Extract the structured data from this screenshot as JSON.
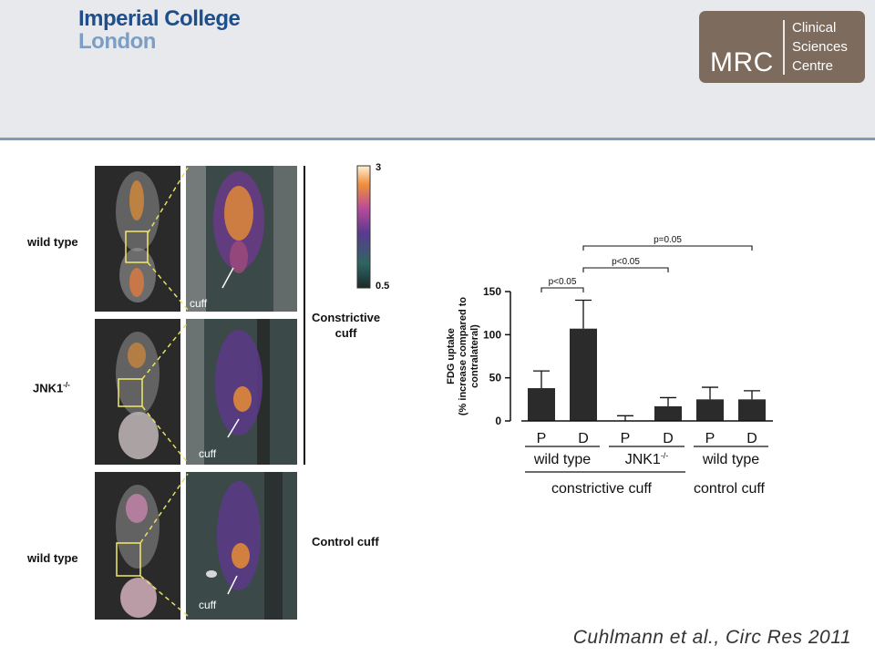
{
  "header": {
    "logo_line1": "Imperial College",
    "logo_line2": "London",
    "mrc_big": "MRC",
    "mrc_small": [
      "Clinical",
      "Sciences",
      "Centre"
    ]
  },
  "figure": {
    "row_labels": [
      "wild type",
      "JNK1",
      "wild type"
    ],
    "jnk_superscript": "-/-",
    "cuff_label": "cuff",
    "colorbar_max": "3",
    "colorbar_min": "0.5",
    "constrictive_label_1": "Constrictive",
    "constrictive_label_2": "cuff",
    "control_label": "Control cuff"
  },
  "chart_data": {
    "type": "bar",
    "ylabel_line1": "FDG uptake",
    "ylabel_line2": "(% increase compared to",
    "ylabel_line3": "contralateral)",
    "ylim": [
      0,
      150
    ],
    "yticks": [
      "0",
      "50",
      "100",
      "150"
    ],
    "categories": [
      "P",
      "D",
      "P",
      "D",
      "P",
      "D"
    ],
    "values": [
      38,
      107,
      0,
      17,
      25,
      25
    ],
    "errors": [
      20,
      33,
      6,
      10,
      14,
      10
    ],
    "group_labels": [
      "wild type",
      "JNK1",
      "wild type"
    ],
    "group_superscripts": [
      "",
      "-/-",
      ""
    ],
    "section_labels": [
      "constrictive cuff",
      "control cuff"
    ],
    "significance": [
      {
        "from": 0,
        "to": 1,
        "label": "p<0.05"
      },
      {
        "from": 1,
        "to": 3,
        "label": "p<0.05"
      },
      {
        "from": 1,
        "to": 5,
        "label": "p=0.05"
      }
    ]
  },
  "citation": "Cuhlmann et al., Circ Res 2011"
}
